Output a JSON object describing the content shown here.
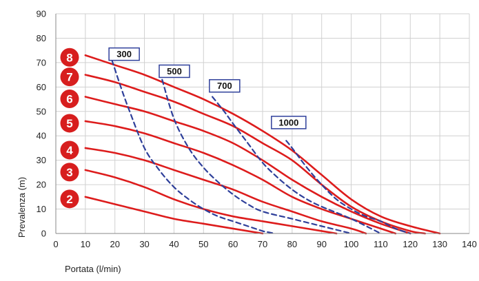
{
  "chart_data": {
    "type": "line",
    "xlabel": "Portata (l/min)",
    "ylabel": "Prevalenza (m)",
    "xlim": [
      0,
      140
    ],
    "ylim": [
      0,
      90
    ],
    "xticks": [
      0,
      10,
      20,
      30,
      40,
      50,
      60,
      70,
      80,
      90,
      100,
      110,
      120,
      130,
      140
    ],
    "yticks": [
      0,
      10,
      20,
      30,
      40,
      50,
      60,
      70,
      80,
      90
    ],
    "grid": true,
    "colors": {
      "curve": "#dd1c1c",
      "iso": "#2e3f9a",
      "badge": "#d71e1e",
      "box_border": "#2e3f9a"
    },
    "series": [
      {
        "name": "8",
        "style": "solid",
        "x": [
          10,
          20,
          30,
          40,
          50,
          60,
          70,
          80,
          90,
          100,
          110,
          120,
          130
        ],
        "y": [
          73,
          69,
          65,
          60,
          55,
          49,
          42,
          34,
          24,
          14,
          7,
          3,
          0
        ]
      },
      {
        "name": "7",
        "style": "solid",
        "x": [
          10,
          20,
          30,
          40,
          50,
          60,
          70,
          80,
          90,
          100,
          110,
          120,
          125
        ],
        "y": [
          65,
          62,
          58,
          54,
          49,
          44,
          37,
          30,
          20,
          11,
          5,
          1,
          0
        ]
      },
      {
        "name": "6",
        "style": "solid",
        "x": [
          10,
          20,
          30,
          40,
          50,
          60,
          70,
          80,
          90,
          100,
          110,
          120
        ],
        "y": [
          56,
          53,
          50,
          46,
          42,
          37,
          30,
          22,
          15,
          9,
          4,
          0
        ]
      },
      {
        "name": "5",
        "style": "solid",
        "x": [
          10,
          20,
          30,
          40,
          50,
          60,
          70,
          80,
          90,
          100,
          110,
          115
        ],
        "y": [
          46,
          44,
          41,
          37,
          33,
          28,
          22,
          15,
          10,
          6,
          2,
          0
        ]
      },
      {
        "name": "4",
        "style": "solid",
        "x": [
          10,
          20,
          30,
          40,
          50,
          60,
          70,
          80,
          90,
          100,
          105
        ],
        "y": [
          35,
          33,
          30,
          26,
          22,
          18,
          13,
          9,
          5,
          2,
          0
        ]
      },
      {
        "name": "3",
        "style": "solid",
        "x": [
          10,
          20,
          30,
          40,
          50,
          60,
          70,
          80,
          90,
          95
        ],
        "y": [
          26,
          23,
          19,
          14,
          10,
          7,
          5,
          3,
          1,
          0
        ]
      },
      {
        "name": "2",
        "style": "solid",
        "x": [
          10,
          20,
          30,
          40,
          50,
          60,
          70
        ],
        "y": [
          15,
          12,
          9,
          6,
          4,
          2,
          0
        ]
      },
      {
        "name": "300",
        "style": "dashed",
        "x": [
          19,
          22,
          25,
          30,
          35,
          40,
          45,
          50,
          55,
          60,
          65,
          70,
          72,
          74
        ],
        "y": [
          71,
          60,
          50,
          35,
          26,
          19,
          14,
          10,
          7,
          5,
          3,
          1,
          0.5,
          0
        ]
      },
      {
        "name": "500",
        "style": "dashed",
        "x": [
          36,
          40,
          45,
          50,
          55,
          60,
          65,
          70,
          80,
          90,
          100
        ],
        "y": [
          63,
          47,
          35,
          27,
          21,
          16,
          12,
          9,
          6,
          3,
          0
        ]
      },
      {
        "name": "700",
        "style": "dashed",
        "x": [
          53,
          57,
          60,
          65,
          70,
          75,
          80,
          85,
          90,
          100,
          110
        ],
        "y": [
          56,
          50,
          45,
          37,
          29,
          23,
          18,
          14,
          11,
          6,
          0
        ]
      },
      {
        "name": "1000",
        "style": "dashed",
        "x": [
          78,
          80,
          85,
          90,
          95,
          100,
          105,
          110,
          115,
          120
        ],
        "y": [
          38,
          35,
          27,
          20,
          14,
          10,
          7,
          5,
          2,
          0
        ]
      }
    ],
    "curve_badges": [
      "8",
      "7",
      "6",
      "5",
      "4",
      "3",
      "2"
    ],
    "iso_labels": [
      "300",
      "500",
      "700",
      "1000"
    ]
  }
}
